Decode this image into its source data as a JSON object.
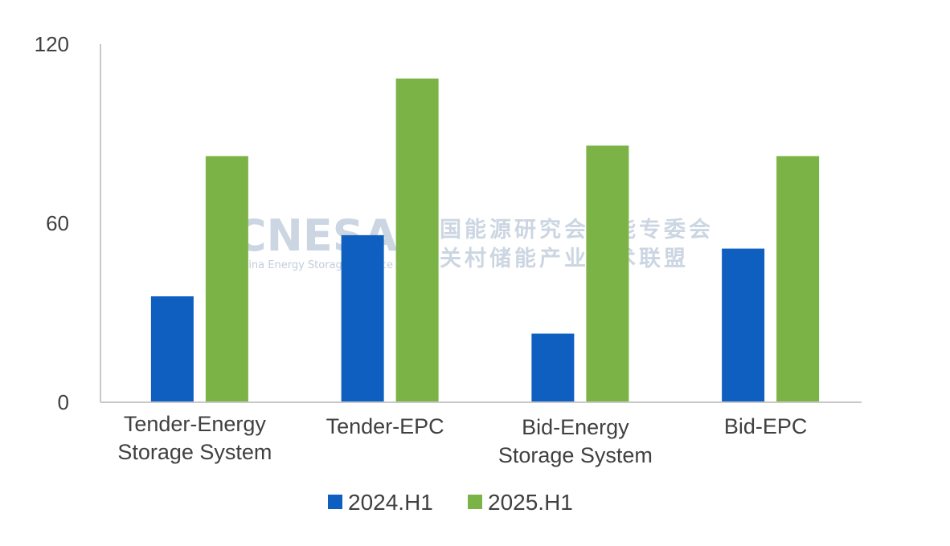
{
  "watermark": {
    "brand": "CNESA",
    "subtitle": "China Energy Storage Alliance",
    "cn_line1": "中国能源研究会储能专委会",
    "cn_line2": "中关村储能产业技术联盟"
  },
  "colors": {
    "series_2024": "#0f5fc0",
    "series_2025": "#7cb347",
    "axis": "#c8c8c8",
    "text": "#404040"
  },
  "chart_data": {
    "type": "bar",
    "title": "",
    "xlabel": "",
    "ylabel": "",
    "ylim": [
      0,
      120
    ],
    "yticks": [
      "0",
      "60",
      "120"
    ],
    "grid": false,
    "legend_position": "bottom",
    "categories": [
      [
        "Tender-Energy",
        "Storage System"
      ],
      [
        "Tender-EPC"
      ],
      [
        "Bid-Energy",
        "Storage System"
      ],
      [
        "Bid-EPC"
      ]
    ],
    "series": [
      {
        "name": "2024.H1",
        "color": "#0f5fc0",
        "values": [
          35.5,
          56,
          23,
          51.5
        ]
      },
      {
        "name": "2025.H1",
        "color": "#7cb347",
        "values": [
          82.5,
          108.5,
          86,
          82.5
        ]
      }
    ]
  }
}
